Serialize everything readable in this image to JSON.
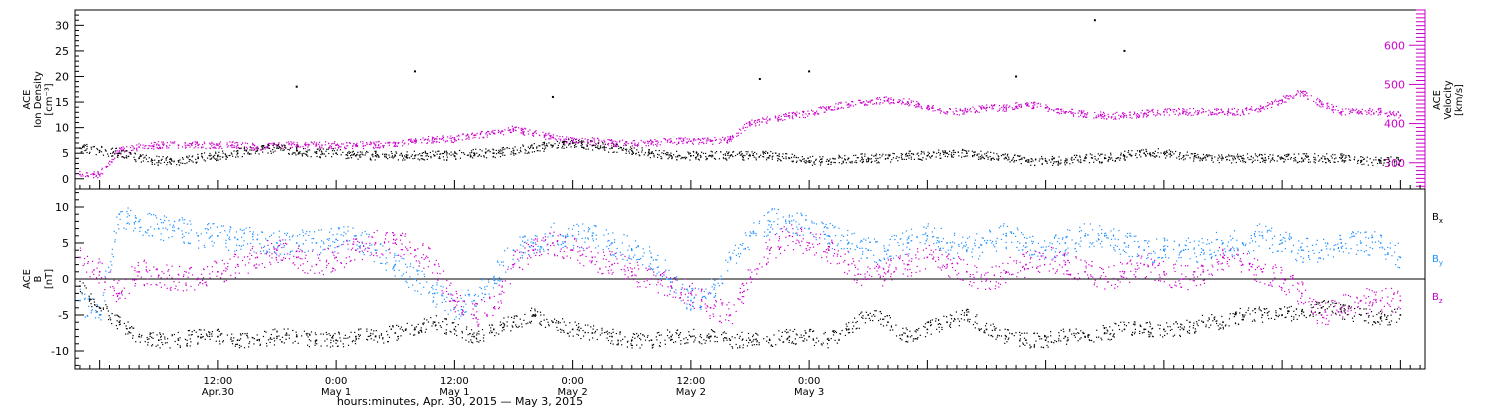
{
  "chart_data": [
    {
      "type": "scatter",
      "panel": "top",
      "ylabel_lines": [
        "ACE",
        "Ion Density",
        "[cm⁻³]"
      ],
      "ylim": [
        -2,
        33
      ],
      "yticks": [
        0,
        5,
        10,
        15,
        20,
        25,
        30
      ],
      "y2label_lines": [
        "ACE",
        "Velocity",
        "[km/s]"
      ],
      "y2lim": [
        233,
        690
      ],
      "y2ticks": [
        300,
        400,
        500,
        600
      ],
      "xlim": [
        -14.5,
        122.5
      ],
      "series": [
        {
          "name": "",
          "axis": "left",
          "color": "#000000",
          "x": [
            -14,
            -12,
            -10,
            -8,
            -6,
            -4,
            -2,
            0,
            2,
            4,
            6,
            8,
            10,
            12,
            14,
            16,
            18,
            20,
            22,
            24,
            26,
            28,
            30,
            32,
            34,
            36,
            38,
            40,
            42,
            44,
            46,
            48,
            50,
            52,
            54,
            56,
            58,
            60,
            62,
            64,
            66,
            68,
            70,
            72,
            74,
            76,
            78,
            80,
            82,
            84,
            86,
            88,
            90,
            92,
            94,
            96,
            98,
            100,
            102,
            104,
            106,
            108,
            110,
            112,
            114,
            116,
            118,
            120
          ],
          "y": [
            6,
            5.5,
            5,
            4,
            3.5,
            3.5,
            4,
            4.5,
            5,
            5.5,
            6,
            5.5,
            5,
            5,
            4.5,
            4.5,
            4.5,
            4.5,
            4.5,
            4.5,
            5,
            5,
            5.5,
            6,
            6.5,
            7,
            6.5,
            6,
            5.5,
            5,
            4.5,
            4.5,
            4.5,
            4.5,
            4.5,
            4.5,
            4,
            3.5,
            3.5,
            4,
            4,
            4,
            4.5,
            4.5,
            5,
            5,
            4.5,
            4,
            3.5,
            3.5,
            3.5,
            4,
            4,
            4.5,
            5,
            5,
            4.5,
            4,
            4,
            4,
            4,
            4,
            4,
            4,
            4,
            3.5,
            3.5,
            3.5
          ]
        },
        {
          "name": "",
          "axis": "right",
          "color": "#cc00cc",
          "x": [
            -14,
            -12,
            -10,
            -8,
            -6,
            -4,
            -2,
            0,
            2,
            4,
            6,
            8,
            10,
            12,
            14,
            16,
            18,
            20,
            22,
            24,
            26,
            28,
            30,
            32,
            34,
            36,
            38,
            40,
            42,
            44,
            46,
            48,
            50,
            52,
            54,
            56,
            58,
            60,
            62,
            64,
            66,
            68,
            70,
            72,
            74,
            76,
            78,
            80,
            82,
            84,
            86,
            88,
            90,
            92,
            94,
            96,
            98,
            100,
            102,
            104,
            106,
            108,
            110,
            112,
            114,
            116,
            118,
            120
          ],
          "y": [
            270,
            270,
            330,
            340,
            345,
            345,
            345,
            345,
            345,
            340,
            345,
            345,
            345,
            345,
            345,
            345,
            350,
            355,
            360,
            360,
            370,
            375,
            385,
            375,
            365,
            355,
            355,
            350,
            350,
            350,
            355,
            355,
            355,
            360,
            400,
            410,
            420,
            425,
            440,
            450,
            455,
            460,
            455,
            440,
            430,
            430,
            440,
            440,
            450,
            440,
            430,
            425,
            420,
            420,
            425,
            430,
            430,
            430,
            430,
            430,
            440,
            460,
            480,
            450,
            430,
            430,
            430,
            420
          ]
        }
      ],
      "outliers": [
        {
          "x": 8,
          "y": 18
        },
        {
          "x": 20,
          "y": 21
        },
        {
          "x": 34,
          "y": 16
        },
        {
          "x": 55,
          "y": 19.5
        },
        {
          "x": 60,
          "y": 21
        },
        {
          "x": 81,
          "y": 20
        },
        {
          "x": 89,
          "y": 31
        },
        {
          "x": 92,
          "y": 25
        }
      ]
    },
    {
      "type": "scatter",
      "panel": "bottom",
      "ylabel_lines": [
        "ACE",
        "B",
        "[nT]"
      ],
      "ylim": [
        -12.5,
        12.5
      ],
      "yticks": [
        -10,
        -5,
        0,
        5,
        10
      ],
      "xlim": [
        -14.5,
        122.5
      ],
      "reference_line": 0,
      "series": [
        {
          "name": "Bx",
          "color": "#000000",
          "x": [
            -14,
            -12,
            -10,
            -8,
            -6,
            -4,
            -2,
            0,
            2,
            4,
            6,
            8,
            10,
            12,
            14,
            16,
            18,
            20,
            22,
            24,
            26,
            28,
            30,
            32,
            34,
            36,
            38,
            40,
            42,
            44,
            46,
            48,
            50,
            52,
            54,
            56,
            58,
            60,
            62,
            64,
            66,
            68,
            70,
            72,
            74,
            76,
            78,
            80,
            82,
            84,
            86,
            88,
            90,
            92,
            94,
            96,
            98,
            100,
            102,
            104,
            106,
            108,
            110,
            112,
            114,
            116,
            118,
            120
          ],
          "y": [
            -1,
            -4,
            -6,
            -8,
            -8.5,
            -8.5,
            -8,
            -8,
            -8.5,
            -8.5,
            -8,
            -8,
            -8.5,
            -8.5,
            -8,
            -8,
            -7.5,
            -7,
            -6,
            -7,
            -8,
            -7,
            -6,
            -5,
            -6,
            -7,
            -7.5,
            -8,
            -8.5,
            -8.5,
            -8,
            -8,
            -8,
            -8.5,
            -8.5,
            -8.5,
            -8,
            -8,
            -8.5,
            -7,
            -5,
            -6,
            -8,
            -7,
            -6,
            -5,
            -7,
            -8,
            -8.5,
            -8.5,
            -8,
            -8,
            -7.5,
            -7,
            -7,
            -7,
            -7,
            -6,
            -6,
            -5,
            -5,
            -5,
            -4.5,
            -4,
            -4.5,
            -5,
            -5.5,
            -5
          ]
        },
        {
          "name": "By",
          "color": "#1e90ff",
          "x": [
            -14,
            -12,
            -10,
            -8,
            -6,
            -4,
            -2,
            0,
            2,
            4,
            6,
            8,
            10,
            12,
            14,
            16,
            18,
            20,
            22,
            24,
            26,
            28,
            30,
            32,
            34,
            36,
            38,
            40,
            42,
            44,
            46,
            48,
            50,
            52,
            54,
            56,
            58,
            60,
            62,
            64,
            66,
            68,
            70,
            72,
            74,
            76,
            78,
            80,
            82,
            84,
            86,
            88,
            90,
            92,
            94,
            96,
            98,
            100,
            102,
            104,
            106,
            108,
            110,
            112,
            114,
            116,
            118,
            120
          ],
          "y": [
            -3,
            -5,
            9,
            8,
            7,
            7,
            6,
            6,
            5.5,
            5.5,
            5,
            5,
            5,
            5.5,
            6,
            4,
            2,
            0,
            -2,
            -4,
            -3,
            0,
            4,
            5,
            6,
            6,
            6,
            5,
            4,
            3,
            0,
            -3,
            -2,
            3,
            6,
            8,
            8,
            7,
            6,
            5,
            4,
            4,
            5,
            6,
            5,
            4,
            5,
            6,
            5,
            4,
            5,
            6,
            6,
            5,
            4,
            4,
            4,
            4,
            5,
            5,
            6,
            5,
            4,
            4,
            5,
            5,
            5,
            3
          ]
        },
        {
          "name": "Bz",
          "color": "#cc00cc",
          "x": [
            -14,
            -12,
            -10,
            -8,
            -6,
            -4,
            -2,
            0,
            2,
            4,
            6,
            8,
            10,
            12,
            14,
            16,
            18,
            20,
            22,
            24,
            26,
            28,
            30,
            32,
            34,
            36,
            38,
            40,
            42,
            44,
            46,
            48,
            50,
            52,
            54,
            56,
            58,
            60,
            62,
            64,
            66,
            68,
            70,
            72,
            74,
            76,
            78,
            80,
            82,
            84,
            86,
            88,
            90,
            92,
            94,
            96,
            98,
            100,
            102,
            104,
            106,
            108,
            110,
            112,
            114,
            116,
            118,
            120
          ],
          "y": [
            3,
            1,
            -2,
            1,
            0.5,
            0,
            0,
            1,
            2,
            3,
            4,
            3,
            2,
            3,
            4,
            5,
            5,
            4,
            2,
            -3,
            -5,
            -4,
            2,
            4,
            5,
            4,
            3,
            2,
            1,
            0,
            -1,
            -2,
            -4,
            -5,
            0,
            4,
            6,
            5,
            4,
            2,
            0,
            1,
            2,
            3,
            2,
            1,
            0,
            1,
            2,
            3,
            2,
            1,
            0,
            1,
            2,
            1,
            0,
            1,
            3,
            2,
            1,
            0,
            -2,
            -5,
            -4,
            -3,
            -3,
            -3
          ]
        }
      ],
      "legend": [
        {
          "label": "B",
          "sub": "x",
          "color": "#000000"
        },
        {
          "label": "B",
          "sub": "y",
          "color": "#1e90ff"
        },
        {
          "label": "B",
          "sub": "z",
          "color": "#cc00cc"
        }
      ]
    }
  ],
  "x_axis": {
    "ticks": [
      {
        "x": 0,
        "time": "12:00",
        "date": "Apr.30"
      },
      {
        "x": 12,
        "time": "0:00",
        "date": "May 1"
      },
      {
        "x": 24,
        "time": "12:00",
        "date": "May 1"
      },
      {
        "x": 36,
        "time": "0:00",
        "date": "May 2"
      },
      {
        "x": 48,
        "time": "12:00",
        "date": "May 2"
      },
      {
        "x": 60,
        "time": "0:00",
        "date": "May 3"
      }
    ],
    "title": "hours:minutes, Apr. 30, 2015 — May  3, 2015"
  },
  "colors": {
    "black": "#000000",
    "magenta": "#cc00cc",
    "blue": "#1e90ff"
  }
}
